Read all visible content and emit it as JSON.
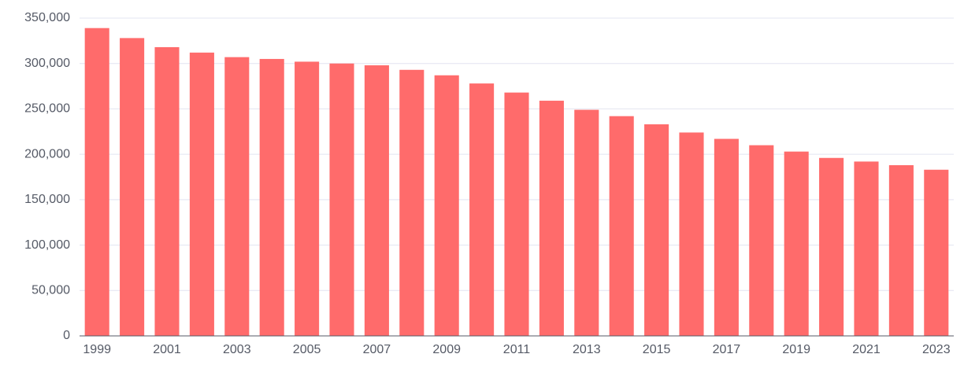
{
  "chart_data": {
    "type": "bar",
    "categories": [
      "1999",
      null,
      "2001",
      null,
      "2003",
      null,
      "2005",
      null,
      "2007",
      null,
      "2009",
      null,
      "2011",
      null,
      "2013",
      null,
      "2015",
      null,
      "2017",
      null,
      "2019",
      null,
      "2021",
      null,
      "2023"
    ],
    "values": [
      339000,
      328000,
      318000,
      312000,
      307000,
      305000,
      302000,
      300000,
      298000,
      293000,
      287000,
      278000,
      268000,
      259000,
      249000,
      242000,
      233000,
      224000,
      217000,
      210000,
      203000,
      196000,
      192000,
      188000,
      183000
    ],
    "color": "#ff6b6b",
    "ylim": [
      0,
      350000
    ],
    "yticks": [
      0,
      {
        "value": 50000,
        "label": "50,000"
      },
      {
        "value": 100000,
        "label": "100,000"
      },
      {
        "value": 150000,
        "label": "150,000"
      },
      {
        "value": 200000,
        "label": "200,000"
      },
      {
        "value": 250000,
        "label": "250,000"
      },
      {
        "value": 300000,
        "label": "300,000"
      },
      {
        "value": 350000,
        "label": "350,000"
      }
    ],
    "grid": true
  }
}
